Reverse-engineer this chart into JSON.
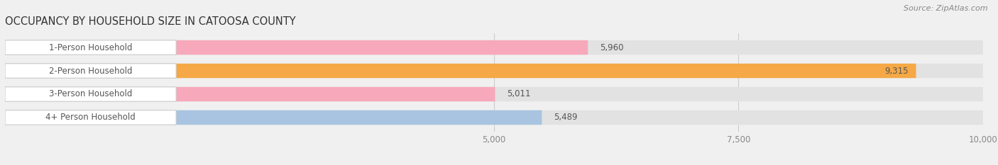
{
  "title": "OCCUPANCY BY HOUSEHOLD SIZE IN CATOOSA COUNTY",
  "source": "Source: ZipAtlas.com",
  "categories": [
    "1-Person Household",
    "2-Person Household",
    "3-Person Household",
    "4+ Person Household"
  ],
  "values": [
    5960,
    9315,
    5011,
    5489
  ],
  "bar_colors": [
    "#f7a8bb",
    "#f5a845",
    "#f7a8bb",
    "#a8c4e0"
  ],
  "xlim": [
    0,
    10000
  ],
  "xticks": [
    5000,
    7500,
    10000
  ],
  "xtick_labels": [
    "5,000",
    "7,500",
    "10,000"
  ],
  "title_fontsize": 10.5,
  "source_fontsize": 8,
  "label_fontsize": 8.5,
  "value_fontsize": 8.5,
  "bg_color": "#f0f0f0",
  "bar_bg_color": "#e2e2e2",
  "label_bg_color": "#ffffff",
  "bar_height": 0.62,
  "rounding_size": 0.25
}
